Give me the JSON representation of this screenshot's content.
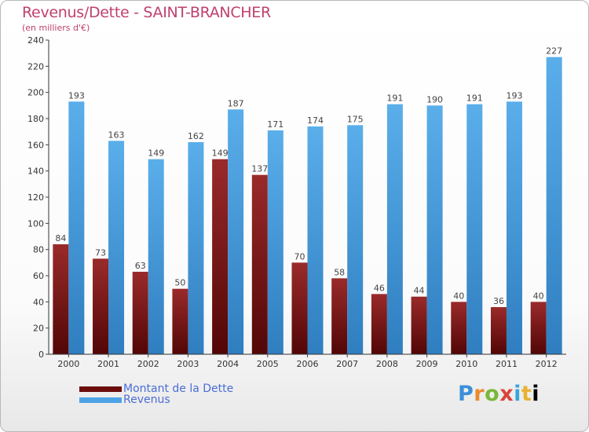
{
  "chart_data": {
    "type": "bar",
    "title": "Revenus/Dette - SAINT-BRANCHER",
    "subtitle": "(en milliers d'€)",
    "categories": [
      "2000",
      "2001",
      "2002",
      "2003",
      "2004",
      "2005",
      "2006",
      "2007",
      "2008",
      "2009",
      "2010",
      "2011",
      "2012"
    ],
    "series": [
      {
        "name": "Montant de la Dette",
        "color": "#7a1010",
        "values": [
          84,
          73,
          63,
          50,
          149,
          137,
          70,
          58,
          46,
          44,
          40,
          36,
          40
        ]
      },
      {
        "name": "Revenus",
        "color": "#4da3e6",
        "values": [
          193,
          163,
          149,
          162,
          187,
          171,
          174,
          175,
          191,
          190,
          191,
          193,
          227
        ]
      }
    ],
    "ylim": [
      0,
      240
    ],
    "yticks": [
      0,
      20,
      40,
      60,
      80,
      100,
      120,
      140,
      160,
      180,
      200,
      220,
      240
    ],
    "grid": false,
    "legend_position": "bottom-left"
  },
  "brand": {
    "letters": [
      "P",
      "r",
      "o",
      "x",
      "i",
      "t",
      "i"
    ]
  }
}
